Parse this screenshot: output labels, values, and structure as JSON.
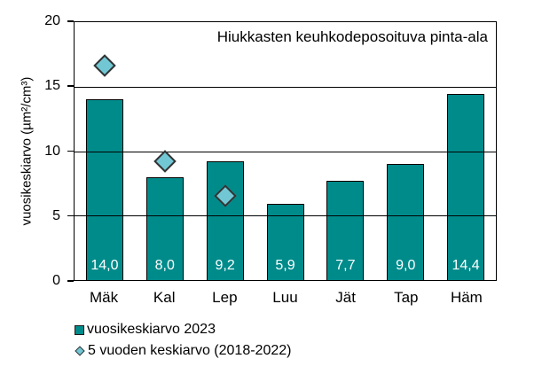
{
  "chart_data": {
    "type": "bar",
    "title": "Hiukkasten keuhkodeposoituva pinta-ala",
    "ylabel": "vuosikeskiarvo (µm²/cm³)",
    "xlabel": "",
    "categories": [
      "Mäk",
      "Kal",
      "Lep",
      "Luu",
      "Jät",
      "Tap",
      "Häm"
    ],
    "series": [
      {
        "name": "vuosikeskiarvo 2023",
        "type": "bar",
        "values": [
          14.0,
          8.0,
          9.2,
          5.9,
          7.7,
          9.0,
          14.4
        ],
        "labels": [
          "14,0",
          "8,0",
          "9,2",
          "5,9",
          "7,7",
          "9,0",
          "14,4"
        ]
      },
      {
        "name": "5 vuoden keskiarvo (2018-2022)",
        "type": "scatter",
        "marker": "diamond",
        "values": [
          16.6,
          9.2,
          6.5,
          null,
          null,
          null,
          null
        ]
      }
    ],
    "ylim": [
      0,
      20
    ],
    "yticks": [
      0,
      5,
      10,
      15,
      20
    ],
    "grid": "horizontal",
    "legend_position": "bottom-left",
    "colors": {
      "bar_fill": "#008B8B",
      "bar_border": "#000000",
      "bar_label_text": "#FFFFFF",
      "marker_fill": "#72C7D4",
      "marker_border": "#333333",
      "grid_color": "#000000",
      "text_color": "#000000",
      "background": "#FFFFFF"
    }
  }
}
